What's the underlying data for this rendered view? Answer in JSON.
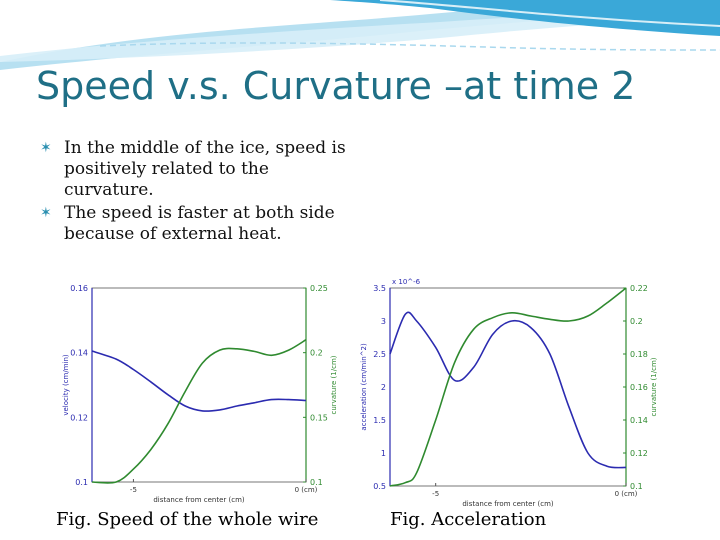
{
  "slide": {
    "title": "Speed v.s. Curvature –at time 2",
    "bullets": [
      "In the middle of the ice, speed is positively related to the curvature.",
      "The speed is faster at both side because of external heat."
    ],
    "captions": [
      "Fig. Speed of the whole wire",
      "Fig. Acceleration"
    ],
    "colors": {
      "title": "#1f6f86",
      "bullet_marker": "#2a8fb0",
      "series_blue": "#2b2bb0",
      "series_green": "#2f8a2f",
      "wave": "#3aa8d8"
    }
  },
  "chart_data": [
    {
      "type": "line",
      "title": "",
      "xlabel": "distance from center (cm)",
      "ylabel": "velocity (cm/min)",
      "y2label": "curvature (1/cm)",
      "x_ticks": [
        "-5",
        "0 (cm)"
      ],
      "y_ticks": [
        "0.16",
        "0.14",
        "0.12",
        "0.1"
      ],
      "y2_ticks": [
        "0.25",
        "0.2",
        "0.15",
        "0.1"
      ],
      "xlim": [
        -6.2,
        0
      ],
      "ylim": [
        0.1,
        0.16
      ],
      "y2lim": [
        0.1,
        0.25
      ],
      "series": [
        {
          "axis": "left",
          "color": "#2b2bb0",
          "x": [
            -6.2,
            -5.5,
            -5,
            -4.5,
            -4,
            -3.5,
            -3,
            -2.5,
            -2,
            -1.5,
            -1,
            -0.5,
            0
          ],
          "y": [
            0.1405,
            0.138,
            0.1348,
            0.131,
            0.127,
            0.1235,
            0.122,
            0.1223,
            0.1235,
            0.1245,
            0.1255,
            0.1255,
            0.1252
          ]
        },
        {
          "axis": "right",
          "color": "#2f8a2f",
          "x": [
            -6.2,
            -5.5,
            -5,
            -4.5,
            -4,
            -3.5,
            -3,
            -2.5,
            -2,
            -1.5,
            -1,
            -0.5,
            0
          ],
          "y": [
            0.1,
            0.1,
            0.11,
            0.125,
            0.145,
            0.17,
            0.192,
            0.202,
            0.203,
            0.201,
            0.198,
            0.202,
            0.21
          ]
        }
      ]
    },
    {
      "type": "line",
      "title": "",
      "xlabel": "distance from center (cm)",
      "ylabel": "acceleration (cm/min^2)",
      "y2label": "curvature (1/cm)",
      "y_multiplier": "x 10^-6",
      "x_ticks": [
        "-5",
        "0 (cm)"
      ],
      "y_ticks": [
        "3.5",
        "3",
        "2.5",
        "2",
        "1.5",
        "1",
        "0.5"
      ],
      "y2_ticks": [
        "0.22",
        "0.2",
        "0.18",
        "0.16",
        "0.14",
        "0.12",
        "0.1"
      ],
      "xlim": [
        -6.2,
        0
      ],
      "ylim": [
        0.5,
        3.5
      ],
      "y2lim": [
        0.1,
        0.22
      ],
      "series": [
        {
          "axis": "left",
          "color": "#2b2bb0",
          "x": [
            -6.2,
            -5.8,
            -5.5,
            -5,
            -4.5,
            -4,
            -3.5,
            -3,
            -2.5,
            -2,
            -1.5,
            -1,
            -0.5,
            0
          ],
          "y": [
            2.5,
            3.1,
            3.0,
            2.6,
            2.1,
            2.3,
            2.8,
            3.0,
            2.9,
            2.5,
            1.7,
            1.0,
            0.8,
            0.78
          ]
        },
        {
          "axis": "right",
          "color": "#2f8a2f",
          "x": [
            -6.2,
            -5.8,
            -5.5,
            -5,
            -4.5,
            -4,
            -3.5,
            -3,
            -2.5,
            -2,
            -1.5,
            -1,
            -0.5,
            0
          ],
          "y": [
            0.1,
            0.102,
            0.108,
            0.14,
            0.175,
            0.195,
            0.202,
            0.205,
            0.203,
            0.201,
            0.2,
            0.203,
            0.211,
            0.22
          ]
        }
      ]
    }
  ]
}
